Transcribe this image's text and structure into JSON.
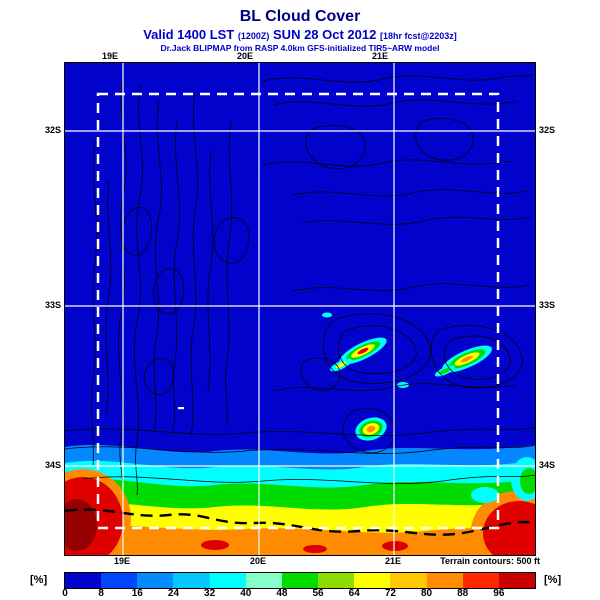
{
  "header": {
    "title": "BL Cloud Cover",
    "valid_prefix": "Valid 1400 LST",
    "valid_zulu": "(1200Z)",
    "valid_date": "SUN 28 Oct 2012",
    "valid_fcst": "[18hr fcst@2203z]",
    "model_line": "Dr.Jack BLIPMAP from RASP 4.0km GFS-initialized TIR5~ARW model"
  },
  "map": {
    "background_color": "#0202cd",
    "axis": {
      "top": [
        "19E",
        "20E",
        "21E"
      ],
      "bottom": [
        "19E",
        "20E",
        "21E"
      ],
      "left": [
        "32S",
        "33S",
        "34S"
      ],
      "right": [
        "32S",
        "33S",
        "34S"
      ]
    },
    "terrain_note": "Terrain contours: 500 ft"
  },
  "colorbar": {
    "unit": "[%]",
    "ticks": [
      "0",
      "8",
      "16",
      "24",
      "32",
      "40",
      "48",
      "56",
      "64",
      "72",
      "80",
      "88",
      "96"
    ],
    "segments": [
      "#0202cd",
      "#0245ff",
      "#028cff",
      "#02c8ff",
      "#00ffff",
      "#87ffc8",
      "#00dc00",
      "#8cdc00",
      "#ffff00",
      "#ffc800",
      "#ff8c00",
      "#ff2800",
      "#c80000"
    ]
  },
  "chart_data": {
    "type": "heatmap",
    "title": "BL Cloud Cover",
    "units": "%",
    "scale_ticks": [
      0,
      8,
      16,
      24,
      32,
      40,
      48,
      56,
      64,
      72,
      80,
      88,
      96
    ],
    "scale_colors": [
      "#0202cd",
      "#0245ff",
      "#028cff",
      "#02c8ff",
      "#00ffff",
      "#87ffc8",
      "#00dc00",
      "#8cdc00",
      "#ffff00",
      "#ffc800",
      "#ff8c00",
      "#ff2800",
      "#c80000"
    ],
    "x_ticks": [
      "19E",
      "20E",
      "21E"
    ],
    "y_ticks": [
      "32S",
      "33S",
      "34S"
    ],
    "annotation": "Terrain contours: 500 ft",
    "notes": "Mostly 0% (blue) inland; isolated 60-100% cloud streaks mid-domain; heavy 60-100% cloud band along southern coast"
  }
}
